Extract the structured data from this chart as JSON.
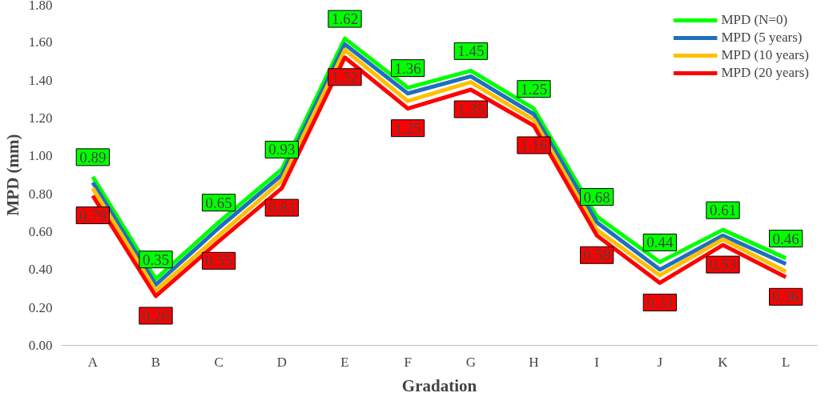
{
  "chart_data": {
    "type": "line",
    "xlabel": "Gradation",
    "ylabel": "MPD (mm)",
    "categories": [
      "A",
      "B",
      "C",
      "D",
      "E",
      "F",
      "G",
      "H",
      "I",
      "J",
      "K",
      "L"
    ],
    "series": [
      {
        "name": "MPD (N=0)",
        "color": "#00ff00",
        "values": [
          0.89,
          0.35,
          0.65,
          0.93,
          1.62,
          1.36,
          1.45,
          1.25,
          0.68,
          0.44,
          0.61,
          0.46
        ],
        "value_labels": [
          "0.89",
          "0.35",
          "0.65",
          "0.93",
          "1.62",
          "1.36",
          "1.45",
          "1.25",
          "0.68",
          "0.44",
          "0.61",
          "0.46"
        ]
      },
      {
        "name": "MPD (5 years)",
        "color": "#1f6fc0",
        "values": [
          0.86,
          0.32,
          0.62,
          0.9,
          1.59,
          1.33,
          1.42,
          1.22,
          0.65,
          0.4,
          0.58,
          0.43
        ]
      },
      {
        "name": "MPD (10 years)",
        "color": "#ffc000",
        "values": [
          0.83,
          0.29,
          0.58,
          0.87,
          1.56,
          1.29,
          1.39,
          1.19,
          0.61,
          0.37,
          0.56,
          0.39
        ]
      },
      {
        "name": "MPD (20 years)",
        "color": "#ff0000",
        "values": [
          0.79,
          0.26,
          0.55,
          0.83,
          1.52,
          1.25,
          1.35,
          1.16,
          0.58,
          0.33,
          0.53,
          0.36
        ],
        "value_labels": [
          "0.79",
          "0.26",
          "0.55",
          "0.83",
          "1.52",
          "1.25",
          "1.35",
          "1.16",
          "0.58",
          "0.33",
          "0.53",
          "0.36"
        ]
      }
    ],
    "ylim": [
      0,
      1.8
    ],
    "yticks": [
      {
        "value": 0,
        "label": "0.00"
      },
      {
        "value": 0.2,
        "label": "0.20"
      },
      {
        "value": 0.4,
        "label": "0.40"
      },
      {
        "value": 0.6,
        "label": "0.60"
      },
      {
        "value": 0.8,
        "label": "0.80"
      },
      {
        "value": 1.0,
        "label": "1.00"
      },
      {
        "value": 1.2,
        "label": "1.20"
      },
      {
        "value": 1.4,
        "label": "1.40"
      },
      {
        "value": 1.6,
        "label": "1.60"
      },
      {
        "value": 1.8,
        "label": "1.80"
      }
    ],
    "grid": false,
    "legend": "top right",
    "marker": "none",
    "line_style": "solid"
  }
}
